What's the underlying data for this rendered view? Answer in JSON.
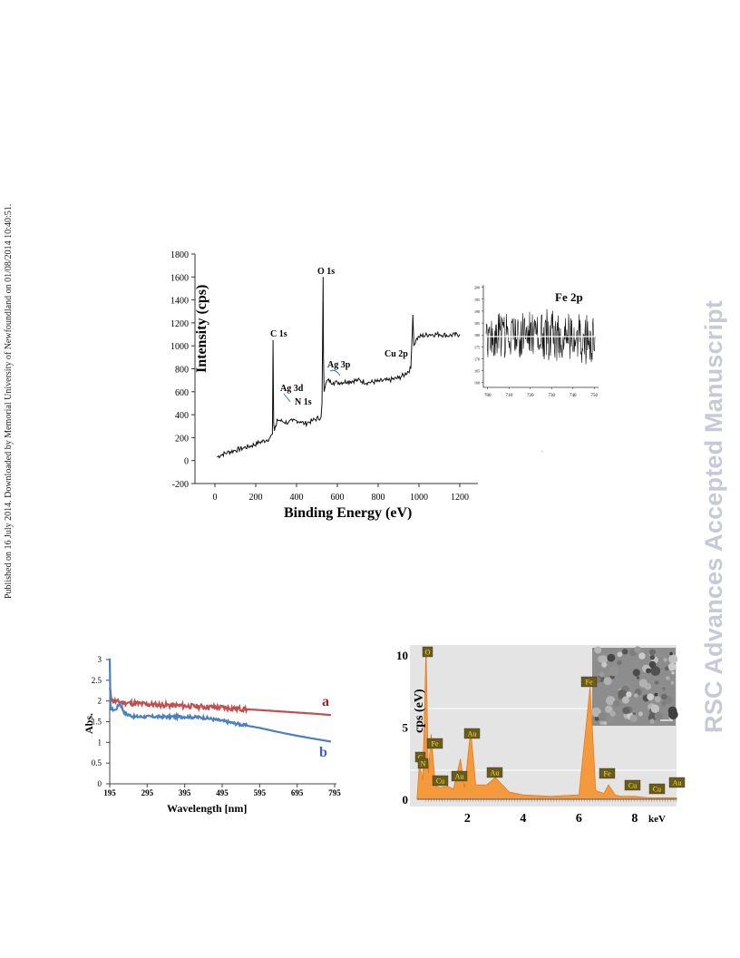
{
  "side_note": "Published on 16 July 2014. Downloaded by Memorial University of Newfoundland on 01/08/2014 10:40:51.",
  "watermark": "RSC Advances Accepted Manuscript",
  "chart_data": [
    {
      "type": "line",
      "xlabel": "Binding Energy (eV)",
      "ylabel": "Intensity (cps)",
      "xlim": [
        0,
        1200
      ],
      "ylim": [
        -200,
        1800
      ],
      "xticks": [
        0,
        200,
        400,
        600,
        800,
        1000,
        1200
      ],
      "yticks": [
        -200,
        0,
        200,
        400,
        600,
        800,
        1000,
        1200,
        1400,
        1600,
        1800
      ],
      "series": [
        {
          "x": [
            10,
            30,
            60,
            100,
            140,
            180,
            220,
            255,
            270,
            282,
            285,
            288,
            292,
            300,
            305,
            330,
            360,
            380,
            400,
            420,
            440,
            460,
            480,
            520,
            525,
            530,
            532,
            535,
            540,
            550,
            580,
            600,
            650,
            700,
            750,
            800,
            850,
            900,
            930,
            960,
            970,
            975,
            985,
            1000,
            1050,
            1100,
            1150,
            1200
          ],
          "y": [
            30,
            50,
            70,
            90,
            110,
            130,
            160,
            180,
            200,
            230,
            1050,
            320,
            260,
            300,
            360,
            340,
            330,
            345,
            350,
            340,
            320,
            335,
            350,
            380,
            500,
            1600,
            900,
            600,
            640,
            700,
            680,
            680,
            690,
            700,
            680,
            690,
            700,
            720,
            750,
            800,
            1270,
            1000,
            1050,
            1080,
            1100,
            1100,
            1090,
            1100
          ]
        }
      ],
      "annotations": [
        "C 1s",
        "Ag 3d",
        "N 1s",
        "O 1s",
        "Ag 3p",
        "Cu 2p"
      ]
    },
    {
      "type": "line",
      "title": "Fe 2p",
      "xlim": [
        698,
        752
      ],
      "ylim": [
        158,
        201
      ],
      "xticks": [
        700,
        710,
        720,
        730,
        740,
        750
      ],
      "yticks": [
        160,
        165,
        170,
        175,
        180,
        185,
        190,
        195,
        200
      ]
    },
    {
      "type": "line",
      "xlabel": "Wavelength [nm]",
      "ylabel": "Abs.",
      "xlim": [
        195,
        795
      ],
      "ylim": [
        0,
        3
      ],
      "xticks": [
        195,
        295,
        395,
        495,
        595,
        695,
        795
      ],
      "yticks": [
        0,
        0.5,
        1,
        1.5,
        2,
        2.5,
        3
      ],
      "series": [
        {
          "name": "a",
          "color": "#c0504d",
          "x": [
            195,
            200,
            205,
            215,
            245,
            295,
            345,
            395,
            445,
            495,
            545,
            595,
            645,
            695,
            745,
            785
          ],
          "y": [
            2.3,
            2.05,
            2.0,
            1.98,
            1.95,
            1.92,
            1.9,
            1.88,
            1.86,
            1.84,
            1.81,
            1.78,
            1.75,
            1.72,
            1.69,
            1.66
          ]
        },
        {
          "name": "b",
          "color": "#4a7fc1",
          "x": [
            195,
            197,
            200,
            210,
            222,
            235,
            260,
            295,
            345,
            395,
            445,
            495,
            545,
            595,
            645,
            695,
            745,
            785
          ],
          "y": [
            3.0,
            1.85,
            1.8,
            1.78,
            1.95,
            1.7,
            1.62,
            1.62,
            1.62,
            1.62,
            1.6,
            1.52,
            1.43,
            1.35,
            1.25,
            1.16,
            1.08,
            1.02
          ]
        }
      ]
    },
    {
      "type": "area",
      "xlabel": "keV",
      "ylabel": "cps (eV)",
      "xlim": [
        0.2,
        9.5
      ],
      "ylim": [
        0,
        10.5
      ],
      "xticks": [
        2,
        4,
        6,
        8
      ],
      "yticks": [
        0,
        5,
        10
      ],
      "color": "#f59a3c",
      "series": [
        {
          "x": [
            0.2,
            0.28,
            0.4,
            0.52,
            0.6,
            0.7,
            0.85,
            1.0,
            1.3,
            1.5,
            1.75,
            1.9,
            2.12,
            2.3,
            2.7,
            3.0,
            3.5,
            4.0,
            5.0,
            6.0,
            6.4,
            6.6,
            6.9,
            7.06,
            7.3,
            7.5,
            8.0,
            8.5,
            9.0,
            9.5
          ],
          "y": [
            0.2,
            2.5,
            1.3,
            10.5,
            1.8,
            4.5,
            1.0,
            0.8,
            0.9,
            0.7,
            2.8,
            0.8,
            4.8,
            1.0,
            1.0,
            1.5,
            0.5,
            0.3,
            0.2,
            0.3,
            7.8,
            0.6,
            0.4,
            1.0,
            0.3,
            0.2,
            0.2,
            0.1,
            0.1,
            0.1
          ]
        }
      ],
      "peak_labels": [
        "O",
        "C",
        "Fe",
        "N",
        "Cu",
        "Au",
        "Au",
        "Au",
        "Fe",
        "Fe",
        "Cu",
        "Cu",
        "Au"
      ]
    }
  ]
}
